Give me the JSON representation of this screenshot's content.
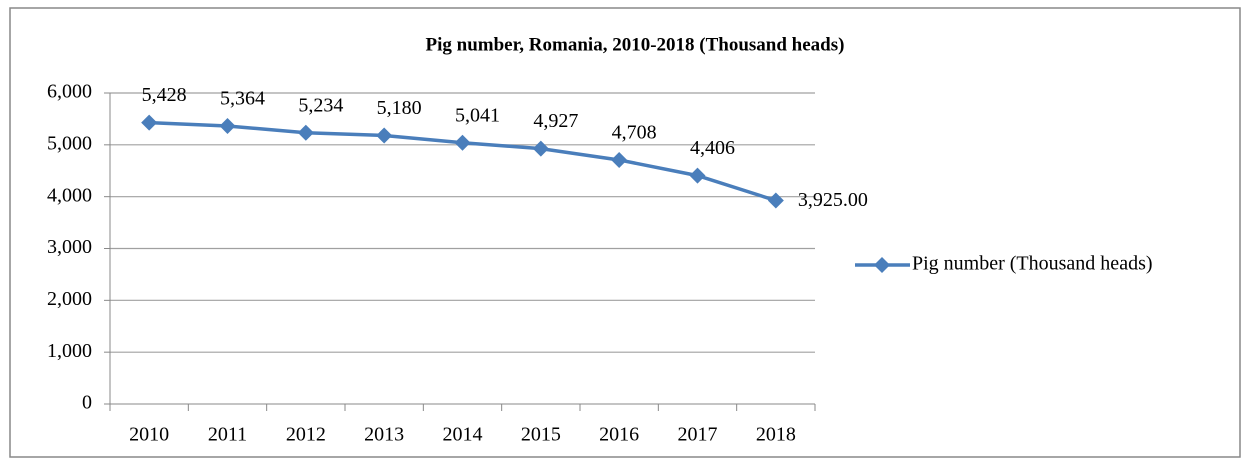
{
  "chart_data": {
    "type": "line",
    "title": "Pig number, Romania, 2010-2018 (Thousand heads)",
    "categories": [
      "2010",
      "2011",
      "2012",
      "2013",
      "2014",
      "2015",
      "2016",
      "2017",
      "2018"
    ],
    "series": [
      {
        "name": "Pig number (Thousand heads)",
        "color": "#4a7ebb",
        "values": [
          5428,
          5364,
          5234,
          5180,
          5041,
          4927,
          4708,
          4406,
          3925
        ],
        "value_labels": [
          "5,428",
          "5,364",
          "5,234",
          "5,180",
          "5,041",
          "4,927",
          "4,708",
          "4,406",
          "3,925.00"
        ]
      }
    ],
    "ylim": [
      0,
      6000
    ],
    "yticks": [
      0,
      {
        "value": 1000,
        "label": "1,000"
      },
      {
        "value": 2000,
        "label": "2,000"
      },
      {
        "value": 3000,
        "label": "3,000"
      },
      {
        "value": 4000,
        "label": "4,000"
      },
      {
        "value": 5000,
        "label": "5,000"
      },
      {
        "value": 6000,
        "label": "6,000"
      }
    ],
    "grid": true,
    "legend": "right"
  }
}
